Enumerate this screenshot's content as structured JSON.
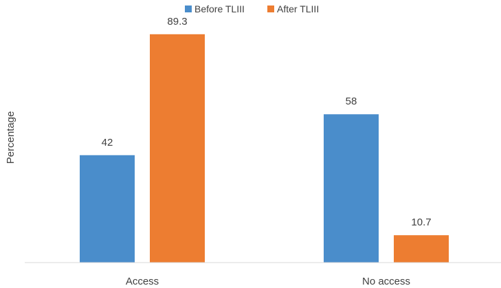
{
  "chart_data": {
    "type": "bar",
    "categories": [
      "Access",
      "No access"
    ],
    "series": [
      {
        "name": "Before TLIII",
        "values": [
          42,
          58
        ],
        "color": "#4a8dcb"
      },
      {
        "name": "After TLIII",
        "values": [
          89.3,
          10.7
        ],
        "color": "#ed7d31"
      }
    ],
    "data_labels": [
      [
        "42",
        "58"
      ],
      [
        "89.3",
        "10.7"
      ]
    ],
    "xlabel": "",
    "ylabel": "Percentage",
    "ylim": [
      0,
      100
    ],
    "grid": false,
    "legend_position": "top-center"
  }
}
